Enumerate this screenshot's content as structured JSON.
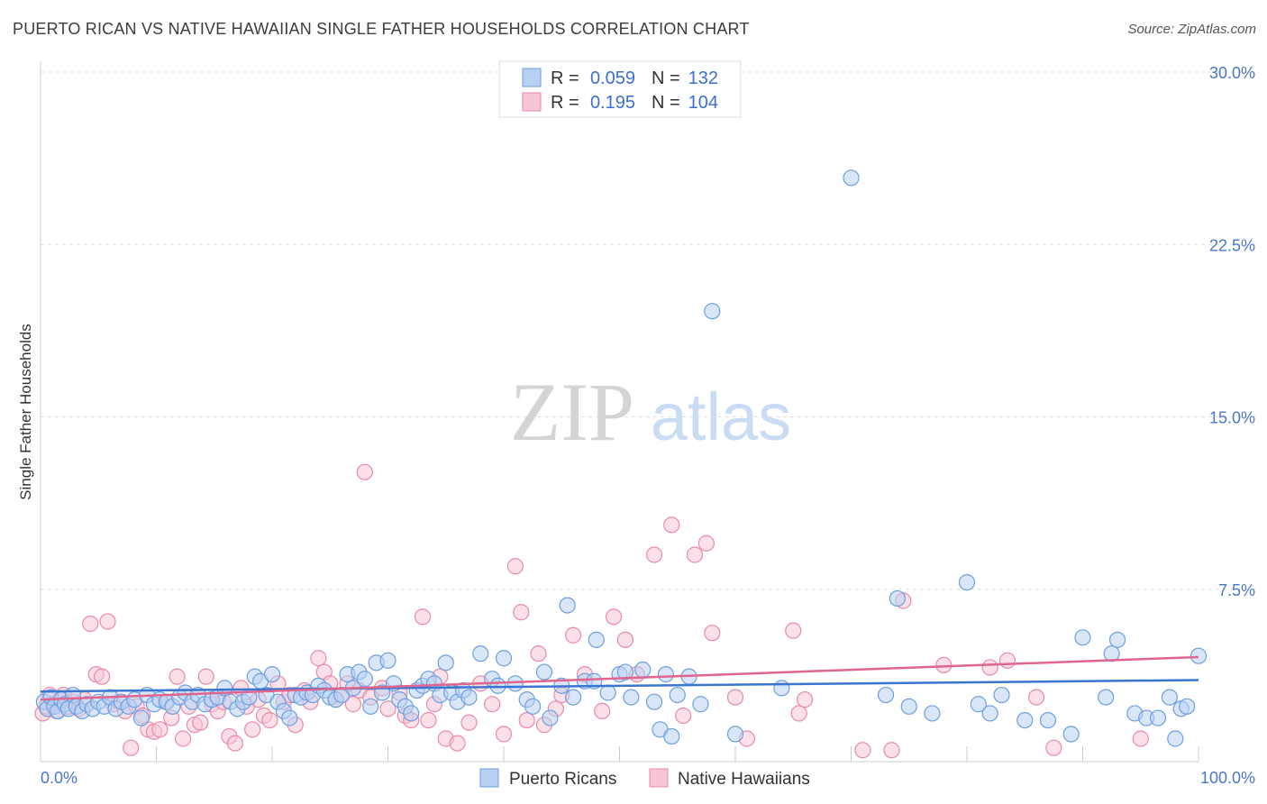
{
  "title": "PUERTO RICAN VS NATIVE HAWAIIAN SINGLE FATHER HOUSEHOLDS CORRELATION CHART",
  "source": "Source: ZipAtlas.com",
  "watermark": {
    "zip": "ZIP",
    "atlas": "atlas"
  },
  "chart_data": {
    "type": "scatter",
    "ylabel": "Single Father Households",
    "xlabel": "",
    "xlim": [
      0,
      100
    ],
    "ylim": [
      0,
      30
    ],
    "x_tick_labels": [
      "0.0%",
      "100.0%"
    ],
    "y_ticks": [
      7.5,
      15.0,
      22.5,
      30.0
    ],
    "y_tick_labels": [
      "7.5%",
      "15.0%",
      "22.5%",
      "30.0%"
    ],
    "grid": true,
    "legend_position": "top-center",
    "stats": [
      {
        "r_label": "R =",
        "r_value": "0.059",
        "n_label": "N =",
        "n_value": "132"
      },
      {
        "r_label": "R =",
        "r_value": "0.195",
        "n_label": "N =",
        "n_value": "104"
      }
    ],
    "series": [
      {
        "name": "Puerto Ricans",
        "color": "#6d9fe0",
        "fill": "#b8d1f3",
        "line_color": "#3a76d0",
        "trend": [
          [
            0,
            3.05
          ],
          [
            100,
            3.55
          ]
        ],
        "points": [
          [
            0.3,
            2.6
          ],
          [
            0.6,
            2.3
          ],
          [
            0.9,
            2.8
          ],
          [
            1.2,
            2.4
          ],
          [
            1.5,
            2.2
          ],
          [
            1.8,
            2.7
          ],
          [
            2.1,
            2.5
          ],
          [
            2.4,
            2.3
          ],
          [
            2.8,
            2.9
          ],
          [
            3.1,
            2.4
          ],
          [
            3.6,
            2.2
          ],
          [
            4.0,
            2.5
          ],
          [
            4.5,
            2.3
          ],
          [
            5.0,
            2.6
          ],
          [
            5.5,
            2.4
          ],
          [
            6.0,
            2.8
          ],
          [
            6.5,
            2.3
          ],
          [
            7.0,
            2.6
          ],
          [
            7.6,
            2.4
          ],
          [
            8.1,
            2.7
          ],
          [
            8.7,
            1.9
          ],
          [
            9.2,
            2.9
          ],
          [
            9.8,
            2.5
          ],
          [
            10.3,
            2.7
          ],
          [
            10.9,
            2.6
          ],
          [
            11.4,
            2.4
          ],
          [
            12.0,
            2.8
          ],
          [
            12.5,
            3.0
          ],
          [
            13.1,
            2.6
          ],
          [
            13.6,
            2.9
          ],
          [
            14.2,
            2.5
          ],
          [
            14.8,
            2.7
          ],
          [
            15.3,
            2.8
          ],
          [
            15.9,
            3.2
          ],
          [
            16.4,
            2.6
          ],
          [
            17.0,
            2.3
          ],
          [
            17.5,
            2.6
          ],
          [
            18.0,
            2.8
          ],
          [
            18.5,
            3.7
          ],
          [
            19.0,
            3.5
          ],
          [
            19.5,
            2.9
          ],
          [
            20.0,
            3.8
          ],
          [
            20.5,
            2.6
          ],
          [
            21.0,
            2.2
          ],
          [
            21.5,
            1.9
          ],
          [
            22.0,
            2.9
          ],
          [
            22.5,
            2.8
          ],
          [
            23.0,
            3.0
          ],
          [
            23.5,
            2.9
          ],
          [
            24.0,
            3.3
          ],
          [
            24.5,
            3.1
          ],
          [
            25.0,
            2.8
          ],
          [
            25.5,
            2.7
          ],
          [
            26.0,
            2.9
          ],
          [
            26.5,
            3.8
          ],
          [
            27.0,
            3.2
          ],
          [
            27.5,
            3.9
          ],
          [
            28.0,
            3.6
          ],
          [
            28.5,
            2.4
          ],
          [
            29.0,
            4.3
          ],
          [
            29.5,
            3.0
          ],
          [
            30.0,
            4.4
          ],
          [
            30.5,
            3.4
          ],
          [
            31.0,
            2.7
          ],
          [
            31.5,
            2.4
          ],
          [
            32.0,
            2.1
          ],
          [
            32.5,
            3.1
          ],
          [
            33.0,
            3.3
          ],
          [
            33.5,
            3.6
          ],
          [
            34.0,
            3.4
          ],
          [
            34.5,
            2.9
          ],
          [
            35.0,
            4.3
          ],
          [
            35.5,
            3.0
          ],
          [
            36.0,
            2.6
          ],
          [
            36.5,
            3.1
          ],
          [
            37.0,
            2.8
          ],
          [
            38.0,
            4.7
          ],
          [
            39.0,
            3.6
          ],
          [
            39.5,
            3.3
          ],
          [
            40.0,
            4.5
          ],
          [
            41.0,
            3.4
          ],
          [
            42.0,
            2.7
          ],
          [
            42.5,
            2.4
          ],
          [
            43.5,
            3.9
          ],
          [
            44.0,
            1.9
          ],
          [
            45.0,
            3.3
          ],
          [
            45.5,
            6.8
          ],
          [
            46.0,
            2.8
          ],
          [
            47.0,
            3.5
          ],
          [
            47.8,
            3.5
          ],
          [
            48.0,
            5.3
          ],
          [
            49.0,
            3.0
          ],
          [
            50.0,
            3.8
          ],
          [
            50.5,
            3.9
          ],
          [
            51.0,
            2.8
          ],
          [
            52.0,
            4.0
          ],
          [
            53.0,
            2.6
          ],
          [
            53.5,
            1.4
          ],
          [
            54.0,
            3.8
          ],
          [
            54.5,
            1.1
          ],
          [
            55.0,
            2.9
          ],
          [
            56.0,
            3.7
          ],
          [
            57.0,
            2.5
          ],
          [
            58.0,
            19.6
          ],
          [
            60.0,
            1.2
          ],
          [
            64.0,
            3.2
          ],
          [
            70.0,
            25.4
          ],
          [
            73.0,
            2.9
          ],
          [
            74.0,
            7.1
          ],
          [
            75.0,
            2.4
          ],
          [
            77.0,
            2.1
          ],
          [
            80.0,
            7.8
          ],
          [
            81.0,
            2.5
          ],
          [
            82.0,
            2.1
          ],
          [
            83.0,
            2.9
          ],
          [
            85.0,
            1.8
          ],
          [
            87.0,
            1.8
          ],
          [
            89.0,
            1.2
          ],
          [
            90.0,
            5.4
          ],
          [
            92.0,
            2.8
          ],
          [
            92.5,
            4.7
          ],
          [
            93.0,
            5.3
          ],
          [
            94.5,
            2.1
          ],
          [
            95.5,
            1.9
          ],
          [
            96.5,
            1.9
          ],
          [
            97.5,
            2.8
          ],
          [
            98.0,
            1.0
          ],
          [
            98.5,
            2.3
          ],
          [
            99.0,
            2.4
          ],
          [
            100.0,
            4.6
          ]
        ]
      },
      {
        "name": "Native Hawaiians",
        "color": "#e88aa8",
        "fill": "#f7c6d6",
        "line_color": "#e0658f",
        "trend": [
          [
            0,
            2.7
          ],
          [
            100,
            4.55
          ]
        ],
        "points": [
          [
            0.2,
            2.1
          ],
          [
            0.5,
            2.4
          ],
          [
            0.8,
            2.9
          ],
          [
            1.1,
            2.5
          ],
          [
            1.4,
            2.2
          ],
          [
            1.7,
            2.7
          ],
          [
            2.0,
            2.9
          ],
          [
            2.4,
            2.4
          ],
          [
            2.8,
            2.6
          ],
          [
            3.3,
            2.3
          ],
          [
            3.8,
            2.7
          ],
          [
            4.3,
            6.0
          ],
          [
            4.8,
            3.8
          ],
          [
            5.3,
            3.7
          ],
          [
            5.8,
            6.1
          ],
          [
            6.3,
            2.5
          ],
          [
            6.8,
            2.6
          ],
          [
            7.3,
            2.2
          ],
          [
            7.8,
            0.6
          ],
          [
            8.3,
            2.4
          ],
          [
            8.8,
            2.0
          ],
          [
            9.3,
            1.4
          ],
          [
            9.8,
            1.3
          ],
          [
            10.3,
            1.4
          ],
          [
            10.8,
            2.6
          ],
          [
            11.3,
            1.9
          ],
          [
            11.8,
            3.7
          ],
          [
            12.3,
            1.0
          ],
          [
            12.8,
            2.4
          ],
          [
            13.3,
            1.6
          ],
          [
            13.8,
            1.7
          ],
          [
            14.3,
            3.7
          ],
          [
            14.8,
            2.5
          ],
          [
            15.3,
            2.2
          ],
          [
            15.8,
            2.6
          ],
          [
            16.3,
            1.1
          ],
          [
            16.8,
            0.8
          ],
          [
            17.3,
            3.2
          ],
          [
            17.8,
            2.4
          ],
          [
            18.3,
            1.4
          ],
          [
            18.8,
            2.7
          ],
          [
            19.3,
            2.0
          ],
          [
            19.8,
            1.8
          ],
          [
            20.5,
            3.4
          ],
          [
            21.0,
            2.6
          ],
          [
            21.5,
            2.9
          ],
          [
            22.0,
            1.6
          ],
          [
            22.8,
            3.1
          ],
          [
            23.3,
            2.6
          ],
          [
            24.0,
            4.5
          ],
          [
            24.5,
            3.9
          ],
          [
            25.0,
            3.4
          ],
          [
            25.5,
            2.7
          ],
          [
            26.0,
            2.9
          ],
          [
            26.5,
            3.4
          ],
          [
            27.0,
            2.5
          ],
          [
            27.5,
            3.1
          ],
          [
            28.0,
            12.6
          ],
          [
            28.5,
            2.8
          ],
          [
            29.5,
            3.2
          ],
          [
            30.0,
            2.3
          ],
          [
            31.0,
            3.0
          ],
          [
            31.5,
            2.0
          ],
          [
            32.0,
            1.8
          ],
          [
            33.0,
            6.3
          ],
          [
            33.5,
            1.8
          ],
          [
            34.0,
            2.5
          ],
          [
            34.5,
            3.7
          ],
          [
            35.0,
            1.0
          ],
          [
            36.0,
            0.8
          ],
          [
            37.0,
            1.7
          ],
          [
            38.0,
            3.4
          ],
          [
            39.0,
            2.5
          ],
          [
            40.0,
            1.2
          ],
          [
            41.0,
            8.5
          ],
          [
            41.5,
            6.5
          ],
          [
            42.0,
            1.8
          ],
          [
            43.0,
            4.7
          ],
          [
            43.5,
            1.6
          ],
          [
            44.5,
            2.3
          ],
          [
            45.0,
            2.9
          ],
          [
            46.0,
            5.5
          ],
          [
            47.0,
            3.8
          ],
          [
            48.5,
            2.2
          ],
          [
            49.5,
            6.3
          ],
          [
            50.5,
            5.3
          ],
          [
            51.5,
            3.8
          ],
          [
            53.0,
            9.0
          ],
          [
            54.5,
            10.3
          ],
          [
            55.5,
            2.0
          ],
          [
            56.5,
            9.0
          ],
          [
            57.5,
            9.5
          ],
          [
            58.0,
            5.6
          ],
          [
            60.0,
            2.8
          ],
          [
            61.0,
            1.0
          ],
          [
            65.0,
            5.7
          ],
          [
            65.5,
            2.1
          ],
          [
            66.0,
            2.7
          ],
          [
            71.0,
            0.5
          ],
          [
            73.5,
            0.5
          ],
          [
            74.5,
            7.0
          ],
          [
            78.0,
            4.2
          ],
          [
            82.0,
            4.1
          ],
          [
            83.5,
            4.4
          ],
          [
            86.0,
            2.8
          ],
          [
            87.5,
            0.6
          ],
          [
            95.0,
            1.0
          ]
        ]
      }
    ]
  }
}
